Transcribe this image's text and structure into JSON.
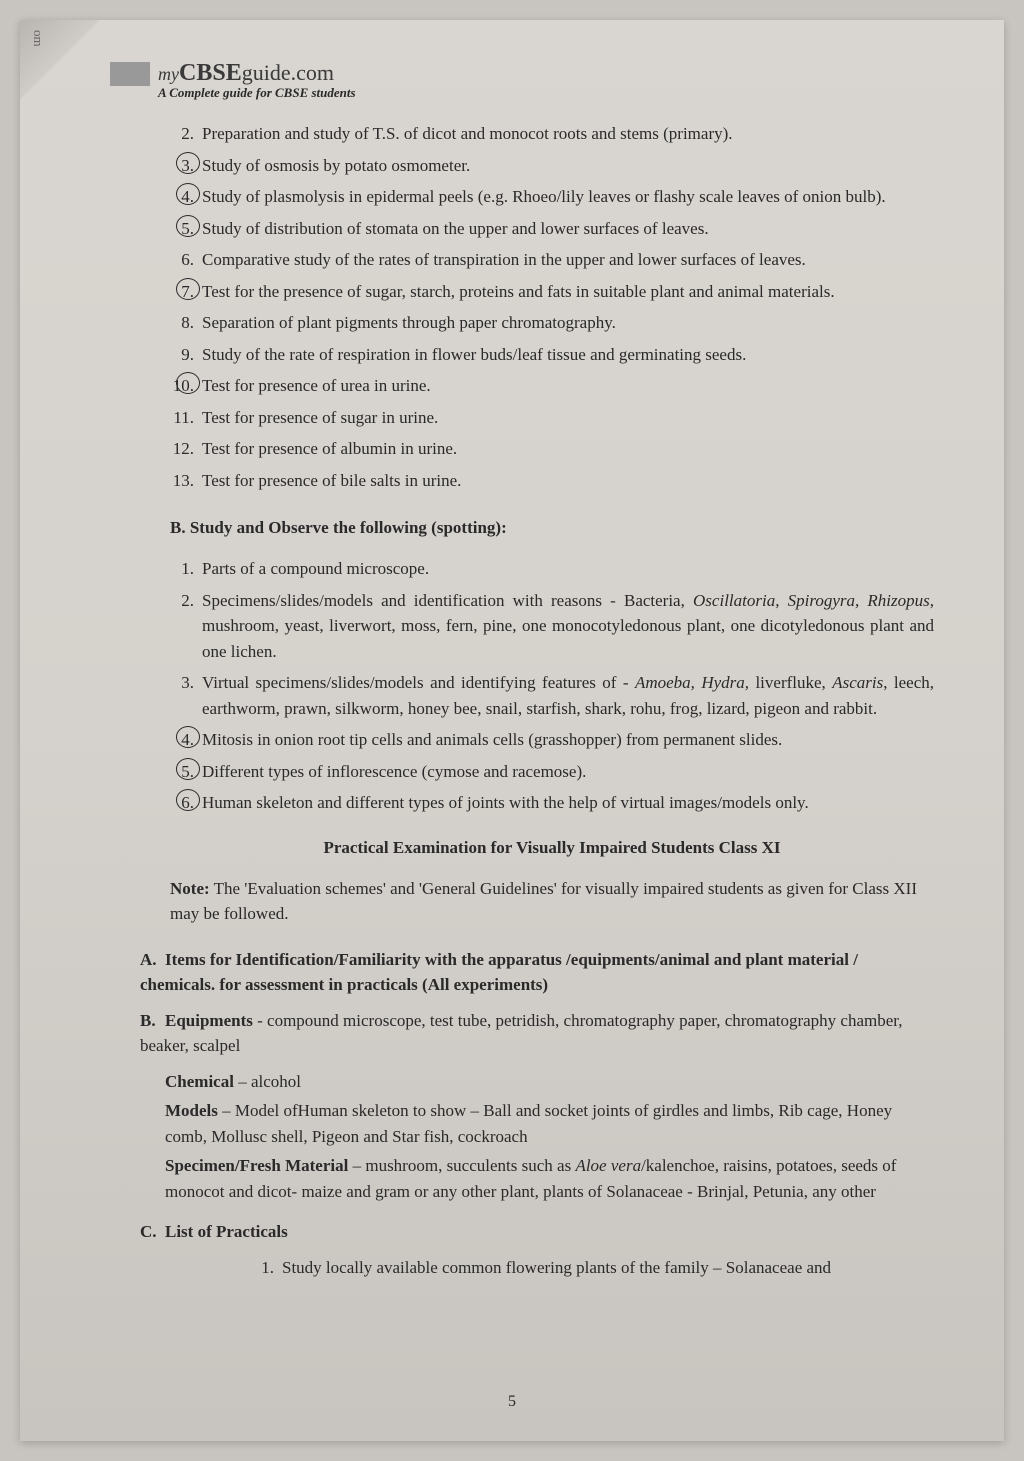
{
  "header": {
    "site_my": "my",
    "site_brand": "CBSE",
    "site_guide": "guide",
    "site_domain": ".com",
    "tagline": "A Complete guide for CBSE students",
    "vertical": "om"
  },
  "listA": {
    "items": [
      {
        "n": "2.",
        "circled": false,
        "text": "Preparation and study of T.S. of dicot and monocot roots and stems (primary)."
      },
      {
        "n": "3.",
        "circled": true,
        "text": "Study of osmosis by potato osmometer."
      },
      {
        "n": "4.",
        "circled": true,
        "text": "Study of plasmolysis in epidermal peels (e.g. Rhoeo/lily leaves or flashy scale leaves of onion bulb)."
      },
      {
        "n": "5.",
        "circled": true,
        "text": "Study of distribution of stomata on the upper and lower surfaces of leaves."
      },
      {
        "n": "6.",
        "circled": false,
        "text": "Comparative study of the rates of transpiration in the upper and lower surfaces of leaves."
      },
      {
        "n": "7.",
        "circled": true,
        "text": "Test for the presence of sugar, starch, proteins and fats in suitable plant and animal materials."
      },
      {
        "n": "8.",
        "circled": false,
        "text": "Separation of plant pigments through paper chromatography."
      },
      {
        "n": "9.",
        "circled": false,
        "text": "Study of the rate of respiration in flower buds/leaf tissue and germinating seeds."
      },
      {
        "n": "10.",
        "circled": true,
        "text": "Test for presence of urea in urine."
      },
      {
        "n": "11.",
        "circled": false,
        "text": "Test for presence of sugar in urine."
      },
      {
        "n": "12.",
        "circled": false,
        "text": "Test for presence of albumin in urine."
      },
      {
        "n": "13.",
        "circled": false,
        "text": "Test for presence of bile salts in urine."
      }
    ]
  },
  "sectionB": {
    "heading": "B. Study and Observe the following (spotting):",
    "items": [
      {
        "n": "1.",
        "circled": false,
        "html": "Parts of a compound microscope."
      },
      {
        "n": "2.",
        "circled": false,
        "html": "Specimens/slides/models and identification with reasons - Bacteria, <em>Oscillatoria, Spirogyra, Rhizopus</em>, mushroom, yeast, liverwort, moss, fern, pine, one monocotyledonous plant, one dicotyledonous plant and one lichen."
      },
      {
        "n": "3.",
        "circled": false,
        "html": "Virtual specimens/slides/models and identifying features of - <em>Amoeba, Hydra,</em> liverfluke, <em>Ascaris</em>, leech, earthworm, prawn, silkworm, honey bee, snail, starfish, shark, rohu, frog, lizard, pigeon and rabbit."
      },
      {
        "n": "4.",
        "circled": true,
        "html": "Mitosis in onion root tip cells and animals cells (grasshopper) from permanent slides."
      },
      {
        "n": "5.",
        "circled": true,
        "html": "Different types of inflorescence (cymose and racemose)."
      },
      {
        "n": "6.",
        "circled": true,
        "html": "Human skeleton and different types of joints with the help of virtual images/models only."
      }
    ]
  },
  "practical": {
    "heading": "Practical Examination for Visually Impaired Students Class XI",
    "note_label": "Note:",
    "note_text": " The 'Evaluation schemes' and 'General Guidelines' for visually impaired students as given for Class XII may be followed."
  },
  "sectionA2": {
    "letter": "A.",
    "text": "Items for Identification/Familiarity with the apparatus /equipments/animal and plant material / chemicals. for assessment in practicals (All experiments)"
  },
  "sectionB2": {
    "letter": "B.",
    "equip_label": "Equipments",
    "equip_text": " - compound microscope, test tube, petridish, chromatography paper, chromatography chamber, beaker, scalpel",
    "chem_label": "Chemical",
    "chem_text": " – alcohol",
    "models_label": "Models",
    "models_text": " – Model ofHuman skeleton to show – Ball and socket joints of girdles and limbs, Rib cage, Honey comb, Mollusc shell, Pigeon and Star fish, cockroach",
    "spec_label": "Specimen/Fresh Material",
    "spec_text": " – mushroom, succulents such as <em>Aloe vera</em>/kalenchoe, raisins, potatoes, seeds of monocot and dicot- maize and gram or any other plant, plants of Solanaceae - Brinjal, Petunia, any other"
  },
  "sectionC": {
    "letter": "C.",
    "heading": "List of Practicals",
    "items": [
      {
        "n": "1.",
        "text": "Study locally available common flowering plants of the family – Solanaceae and"
      }
    ]
  },
  "pageNum": "5"
}
